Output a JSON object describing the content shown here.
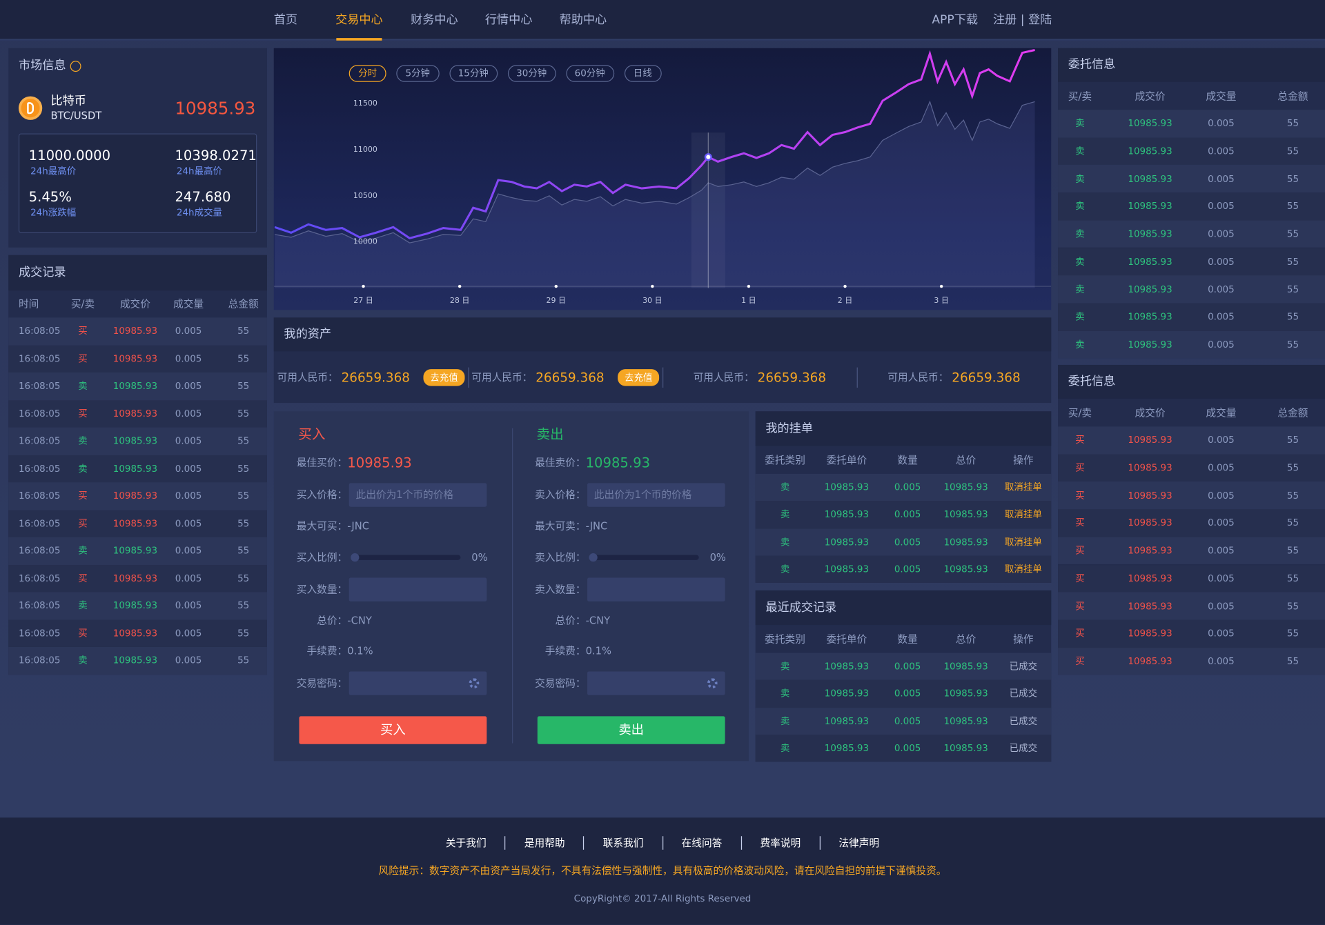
{
  "nav": {
    "items": [
      "首页",
      "交易中心",
      "财务中心",
      "行情中心",
      "帮助中心"
    ],
    "active": 1,
    "right": [
      "APP下载",
      "注册 | 登陆"
    ]
  },
  "market": {
    "title": "市场信息",
    "coin_name": "比特币",
    "pair": "BTC/USDT",
    "price": "10985.93",
    "stats": [
      {
        "value": "11000.0000",
        "label": "24h最高价"
      },
      {
        "value": "10398.0271",
        "label": "24h最高价"
      },
      {
        "value": "5.45%",
        "label": "24h涨跌幅"
      },
      {
        "value": "247.680",
        "label": "24h成交量"
      }
    ]
  },
  "trades": {
    "title": "成交记录",
    "columns": [
      "时间",
      "买/卖",
      "成交价",
      "成交量",
      "总金额"
    ],
    "column_colors": [
      "#8d9bc0",
      null,
      null,
      "#8d9bc0",
      "#8d9bc0"
    ],
    "row_colors": [
      "#f0524a",
      "#f0524a",
      "#2ec27e",
      "#f0524a",
      "#2ec27e",
      "#2ec27e",
      "#f0524a",
      "#f0524a",
      "#2ec27e",
      "#f0524a",
      "#2ec27e",
      "#f0524a",
      "#2ec27e"
    ],
    "rows": [
      [
        "16:08:05",
        "买",
        "10985.93",
        "0.005",
        "55"
      ],
      [
        "16:08:05",
        "买",
        "10985.93",
        "0.005",
        "55"
      ],
      [
        "16:08:05",
        "卖",
        "10985.93",
        "0.005",
        "55"
      ],
      [
        "16:08:05",
        "买",
        "10985.93",
        "0.005",
        "55"
      ],
      [
        "16:08:05",
        "卖",
        "10985.93",
        "0.005",
        "55"
      ],
      [
        "16:08:05",
        "卖",
        "10985.93",
        "0.005",
        "55"
      ],
      [
        "16:08:05",
        "买",
        "10985.93",
        "0.005",
        "55"
      ],
      [
        "16:08:05",
        "买",
        "10985.93",
        "0.005",
        "55"
      ],
      [
        "16:08:05",
        "卖",
        "10985.93",
        "0.005",
        "55"
      ],
      [
        "16:08:05",
        "买",
        "10985.93",
        "0.005",
        "55"
      ],
      [
        "16:08:05",
        "卖",
        "10985.93",
        "0.005",
        "55"
      ],
      [
        "16:08:05",
        "买",
        "10985.93",
        "0.005",
        "55"
      ],
      [
        "16:08:05",
        "卖",
        "10985.93",
        "0.005",
        "55"
      ]
    ]
  },
  "chart_data": {
    "type": "line",
    "tabs": [
      "分时",
      "5分钟",
      "15分钟",
      "30分钟",
      "60分钟",
      "日线"
    ],
    "active_tab": 0,
    "x": [
      -0.92,
      -0.75,
      -0.57,
      -0.39,
      -0.22,
      -0.04,
      0.13,
      0.31,
      0.48,
      0.66,
      0.83,
      1.01,
      1.14,
      1.27,
      1.4,
      1.54,
      1.67,
      1.8,
      1.93,
      2.06,
      2.19,
      2.32,
      2.46,
      2.59,
      2.72,
      2.89,
      3.07,
      3.25,
      3.38,
      3.51,
      3.58,
      3.68,
      3.82,
      3.95,
      4.08,
      4.21,
      4.34,
      4.47,
      4.61,
      4.74,
      4.87,
      5.0,
      5.13,
      5.26,
      5.39,
      5.53,
      5.66,
      5.79,
      5.88,
      5.96,
      6.05,
      6.14,
      6.23,
      6.32,
      6.4,
      6.49,
      6.58,
      6.71,
      6.84,
      6.97
    ],
    "series": [
      {
        "colors": [
          "#5d4cf5",
          "#e23cf0"
        ],
        "values": [
          10160,
          10100,
          10190,
          10130,
          10150,
          10050,
          10100,
          10160,
          10040,
          10090,
          10150,
          10130,
          10370,
          10330,
          10670,
          10650,
          10600,
          10580,
          10650,
          10550,
          10620,
          10600,
          10650,
          10530,
          10620,
          10580,
          10600,
          10580,
          10690,
          10830,
          10920,
          10870,
          10920,
          10960,
          10910,
          10960,
          11050,
          11010,
          11190,
          11050,
          11160,
          11190,
          11240,
          11280,
          11530,
          11620,
          11710,
          11760,
          12040,
          11740,
          11950,
          11710,
          11870,
          11580,
          11830,
          11870,
          11800,
          11740,
          12050,
          12080
        ]
      },
      {
        "colors": [
          "#5a6391",
          "#5a6391"
        ],
        "values": [
          10080,
          10050,
          10120,
          10060,
          10090,
          10000,
          10040,
          10100,
          9990,
          10030,
          10080,
          10070,
          10250,
          10220,
          10520,
          10480,
          10450,
          10440,
          10500,
          10400,
          10460,
          10440,
          10490,
          10390,
          10460,
          10420,
          10440,
          10410,
          10480,
          10560,
          10640,
          10600,
          10620,
          10650,
          10600,
          10640,
          10700,
          10680,
          10800,
          10720,
          10810,
          10850,
          10880,
          10920,
          11100,
          11180,
          11250,
          11300,
          11520,
          11260,
          11400,
          11220,
          11320,
          11100,
          11300,
          11330,
          11280,
          11230,
          11480,
          11520
        ]
      }
    ],
    "cursor_x": 3.58,
    "xlim": [
      -0.93,
      7.14
    ],
    "ylim": [
      9500,
      12100
    ],
    "yticks": [
      10000,
      10500,
      11000,
      11500
    ],
    "xticks": [
      {
        "value": 0,
        "label": "27 日"
      },
      {
        "value": 1,
        "label": "28 日"
      },
      {
        "value": 2,
        "label": "29 日"
      },
      {
        "value": 3,
        "label": "30 日"
      },
      {
        "value": 4,
        "label": "1 日"
      },
      {
        "value": 5,
        "label": "2 日"
      },
      {
        "value": 6,
        "label": "3 日"
      }
    ],
    "grid": false
  },
  "assets": {
    "title": "我的资产",
    "items": [
      {
        "label": "可用人民币：",
        "value": "26659.368",
        "button": "去充值"
      },
      {
        "label": "可用人民币：",
        "value": "26659.368",
        "button": "去充值"
      },
      {
        "label": "可用人民币：",
        "value": "26659.368"
      },
      {
        "label": "可用人民币：",
        "value": "26659.368"
      }
    ]
  },
  "buy": {
    "title": "买入",
    "color": "#f5584a",
    "best_label": "最佳买价：",
    "best": "10985.93",
    "price_label": "买入价格：",
    "price_placeholder": "此出价为1个币的价格",
    "max_label": "最大可买：",
    "max": "-JNC",
    "ratio_label": "买入比例：",
    "ratio": "0%",
    "qty_label": "买入数量：",
    "total_label": "总价：",
    "total": "-CNY",
    "fee_label": "手续费：",
    "fee": "0.1%",
    "pwd_label": "交易密码：",
    "button": "买入"
  },
  "sell": {
    "title": "卖出",
    "color": "#27b768",
    "best_label": "最佳卖价：",
    "best": "10985.93",
    "price_label": "卖入价格：",
    "price_placeholder": "此出价为1个币的价格",
    "max_label": "最大可卖：",
    "max": "-JNC",
    "ratio_label": "卖入比例：",
    "ratio": "0%",
    "qty_label": "卖入数量：",
    "total_label": "总价：",
    "total": "-CNY",
    "fee_label": "手续费：",
    "fee": "0.1%",
    "pwd_label": "交易密码：",
    "button": "卖出"
  },
  "my_orders": {
    "title": "我的挂单",
    "columns": [
      "委托类别",
      "委托单价",
      "数量",
      "总价",
      "操作"
    ],
    "column_colors": [
      "#2ec27e",
      "#2ec27e",
      "#2ec27e",
      "#2ec27e",
      "#f5a623"
    ],
    "rows": [
      [
        "卖",
        "10985.93",
        "0.005",
        "10985.93",
        "取消挂单"
      ],
      [
        "卖",
        "10985.93",
        "0.005",
        "10985.93",
        "取消挂单"
      ],
      [
        "卖",
        "10985.93",
        "0.005",
        "10985.93",
        "取消挂单"
      ],
      [
        "卖",
        "10985.93",
        "0.005",
        "10985.93",
        "取消挂单"
      ]
    ]
  },
  "recent": {
    "title": "最近成交记录",
    "columns": [
      "委托类别",
      "委托单价",
      "数量",
      "总价",
      "操作"
    ],
    "column_colors": [
      "#2ec27e",
      "#2ec27e",
      "#2ec27e",
      "#2ec27e",
      "#a9b3d0"
    ],
    "rows": [
      [
        "卖",
        "10985.93",
        "0.005",
        "10985.93",
        "已成交"
      ],
      [
        "卖",
        "10985.93",
        "0.005",
        "10985.93",
        "已成交"
      ],
      [
        "卖",
        "10985.93",
        "0.005",
        "10985.93",
        "已成交"
      ],
      [
        "卖",
        "10985.93",
        "0.005",
        "10985.93",
        "已成交"
      ]
    ]
  },
  "orders_sell": {
    "title": "委托信息",
    "columns": [
      "买/卖",
      "成交价",
      "成交量",
      "总金额"
    ],
    "column_colors": [
      "#2ec27e",
      "#2ec27e",
      "#8d9bc0",
      "#8d9bc0"
    ],
    "rows": [
      [
        "卖",
        "10985.93",
        "0.005",
        "55"
      ],
      [
        "卖",
        "10985.93",
        "0.005",
        "55"
      ],
      [
        "卖",
        "10985.93",
        "0.005",
        "55"
      ],
      [
        "卖",
        "10985.93",
        "0.005",
        "55"
      ],
      [
        "卖",
        "10985.93",
        "0.005",
        "55"
      ],
      [
        "卖",
        "10985.93",
        "0.005",
        "55"
      ],
      [
        "卖",
        "10985.93",
        "0.005",
        "55"
      ],
      [
        "卖",
        "10985.93",
        "0.005",
        "55"
      ],
      [
        "卖",
        "10985.93",
        "0.005",
        "55"
      ]
    ]
  },
  "orders_buy": {
    "title": "委托信息",
    "columns": [
      "买/卖",
      "成交价",
      "成交量",
      "总金额"
    ],
    "column_colors": [
      "#f0524a",
      "#f0524a",
      "#8d9bc0",
      "#8d9bc0"
    ],
    "rows": [
      [
        "买",
        "10985.93",
        "0.005",
        "55"
      ],
      [
        "买",
        "10985.93",
        "0.005",
        "55"
      ],
      [
        "买",
        "10985.93",
        "0.005",
        "55"
      ],
      [
        "买",
        "10985.93",
        "0.005",
        "55"
      ],
      [
        "买",
        "10985.93",
        "0.005",
        "55"
      ],
      [
        "买",
        "10985.93",
        "0.005",
        "55"
      ],
      [
        "买",
        "10985.93",
        "0.005",
        "55"
      ],
      [
        "买",
        "10985.93",
        "0.005",
        "55"
      ],
      [
        "买",
        "10985.93",
        "0.005",
        "55"
      ]
    ]
  },
  "footer": {
    "links": [
      "关于我们",
      "是用帮助",
      "联系我们",
      "在线问答",
      "费率说明",
      "法律声明"
    ],
    "risk": "风险提示：数字资产不由资产当局发行，不具有法偿性与强制性，具有极高的价格波动风险，请在风险自担的前提下谨慎投资。",
    "copyright": "CopyRight© 2017-All Rights Reserved"
  }
}
